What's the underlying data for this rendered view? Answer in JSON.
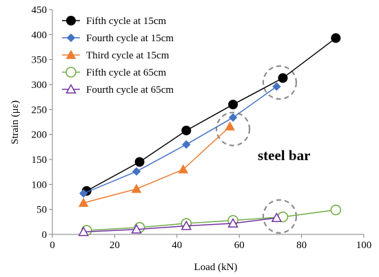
{
  "chart_data": {
    "type": "line",
    "xlabel": "Load (kN)",
    "ylabel": "Strain (με)",
    "xlim": [
      0,
      100
    ],
    "ylim": [
      0,
      450
    ],
    "xticks": [
      0,
      20,
      40,
      60,
      80,
      100
    ],
    "yticks": [
      0,
      50,
      100,
      150,
      200,
      250,
      300,
      350,
      400,
      450
    ],
    "grid": false,
    "legend_position": "top-left",
    "annotation": "steel bar",
    "series": [
      {
        "name": "Fifth cycle at 15cm",
        "color": "#000000",
        "marker": "filled-circle",
        "x": [
          11,
          28,
          43,
          58,
          74,
          91
        ],
        "y": [
          87,
          145,
          208,
          260,
          313,
          393
        ]
      },
      {
        "name": "Fourth cycle at 15cm",
        "color": "#4472C4",
        "marker": "filled-diamond",
        "x": [
          10,
          27,
          43,
          58,
          72
        ],
        "y": [
          82,
          126,
          180,
          234,
          296
        ]
      },
      {
        "name": "Third cycle at 15cm",
        "color": "#ED7D31",
        "marker": "filled-triangle",
        "x": [
          10,
          27,
          42,
          57
        ],
        "y": [
          63,
          91,
          130,
          216
        ]
      },
      {
        "name": "Fifth cycle at 65cm",
        "color": "#70AD47",
        "marker": "open-circle",
        "x": [
          11,
          28,
          43,
          58,
          74,
          91
        ],
        "y": [
          8,
          14,
          22,
          28,
          35,
          49
        ]
      },
      {
        "name": "Fourth cycle at 65cm",
        "color": "#7030A0",
        "marker": "open-triangle",
        "x": [
          10,
          27,
          43,
          58,
          72
        ],
        "y": [
          5,
          10,
          17,
          22,
          33
        ]
      }
    ],
    "highlight_regions": [
      {
        "x": 73,
        "y": 304
      },
      {
        "x": 58,
        "y": 211
      },
      {
        "x": 73,
        "y": 36
      }
    ]
  }
}
